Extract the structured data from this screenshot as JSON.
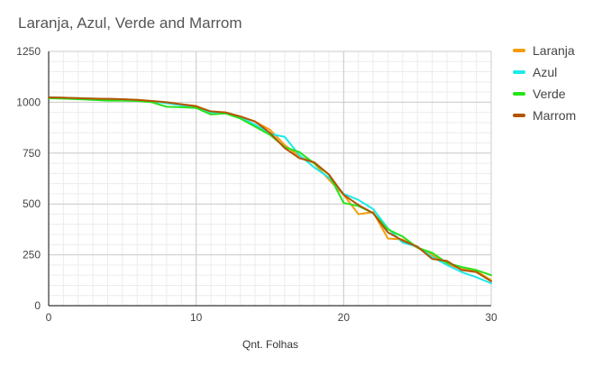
{
  "chart_data": {
    "type": "line",
    "title": "Laranja, Azul, Verde and Marrom",
    "xlabel": "Qnt. Folhas",
    "ylabel": "",
    "xlim": [
      0,
      30
    ],
    "ylim": [
      0,
      1250
    ],
    "x_ticks": [
      0,
      10,
      20,
      30
    ],
    "y_ticks": [
      0,
      250,
      500,
      750,
      1000,
      1250
    ],
    "grid": true,
    "legend_position": "right",
    "x": [
      0,
      1,
      2,
      3,
      4,
      5,
      6,
      7,
      8,
      9,
      10,
      11,
      12,
      13,
      14,
      15,
      16,
      17,
      18,
      19,
      20,
      21,
      22,
      23,
      24,
      25,
      26,
      27,
      28,
      29,
      30
    ],
    "series": [
      {
        "name": "Laranja",
        "color": "#f39c12",
        "values": [
          1024,
          1022,
          1020,
          1018,
          1016,
          1014,
          1012,
          1005,
          998,
          990,
          982,
          950,
          948,
          930,
          905,
          865,
          790,
          735,
          700,
          620,
          545,
          450,
          460,
          330,
          325,
          285,
          250,
          205,
          180,
          170,
          125
        ]
      },
      {
        "name": "Azul",
        "color": "#1de9e9",
        "values": [
          1024,
          1022,
          1020,
          1018,
          1016,
          1014,
          1010,
          1004,
          995,
          985,
          975,
          950,
          945,
          925,
          890,
          845,
          830,
          740,
          680,
          630,
          550,
          520,
          475,
          380,
          310,
          290,
          240,
          200,
          165,
          140,
          110
        ]
      },
      {
        "name": "Verde",
        "color": "#27e31b",
        "values": [
          1020,
          1018,
          1015,
          1012,
          1008,
          1008,
          1006,
          1000,
          978,
          976,
          972,
          940,
          945,
          920,
          880,
          840,
          780,
          755,
          700,
          645,
          505,
          490,
          455,
          375,
          340,
          285,
          260,
          210,
          190,
          175,
          150
        ]
      },
      {
        "name": "Marrom",
        "color": "#b35400",
        "values": [
          1024,
          1022,
          1020,
          1018,
          1017,
          1015,
          1012,
          1006,
          1000,
          990,
          980,
          955,
          950,
          930,
          905,
          850,
          775,
          725,
          705,
          645,
          545,
          495,
          455,
          360,
          320,
          290,
          230,
          220,
          175,
          165,
          120
        ]
      }
    ]
  }
}
